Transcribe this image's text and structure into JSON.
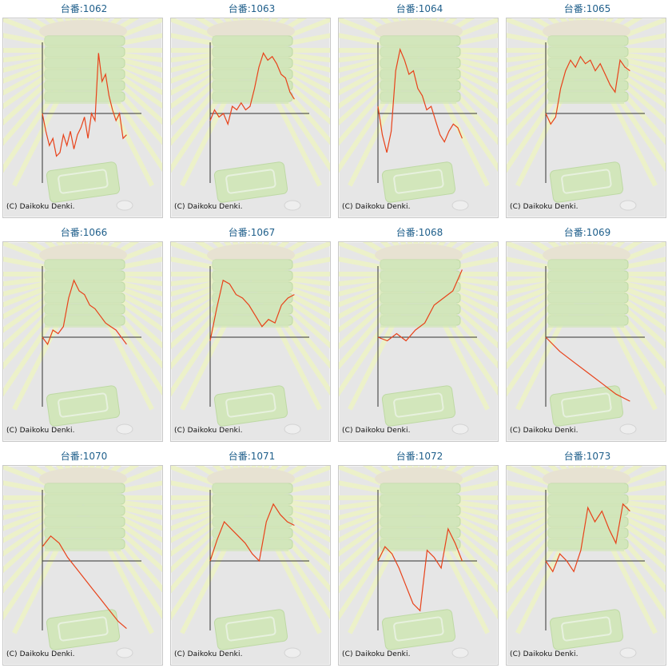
{
  "grid": {
    "rows": 3,
    "cols": 4
  },
  "copyright": "(C) Daikoku Denki.",
  "colors": {
    "line": "#e8421a",
    "axis": "#333333",
    "title": "#1f5f8b",
    "background": "#e6e6e6",
    "art": "#cfe6b4"
  },
  "chart_data": [
    {
      "type": "line",
      "title": "台番:1062",
      "ylim": [
        -1,
        1
      ],
      "values": [
        0.0,
        -0.25,
        -0.45,
        -0.35,
        -0.6,
        -0.55,
        -0.3,
        -0.45,
        -0.25,
        -0.5,
        -0.3,
        -0.2,
        -0.05,
        -0.35,
        0.0,
        -0.1,
        0.85,
        0.45,
        0.55,
        0.25,
        0.05,
        -0.1,
        0.0,
        -0.35,
        -0.3
      ]
    },
    {
      "type": "line",
      "title": "台番:1063",
      "ylim": [
        -1,
        1
      ],
      "values": [
        -0.1,
        0.05,
        -0.05,
        0.0,
        -0.15,
        0.1,
        0.05,
        0.15,
        0.05,
        0.1,
        0.35,
        0.65,
        0.85,
        0.75,
        0.8,
        0.7,
        0.55,
        0.5,
        0.3,
        0.2
      ]
    },
    {
      "type": "line",
      "title": "台番:1064",
      "ylim": [
        -1,
        1
      ],
      "values": [
        0.1,
        -0.3,
        -0.55,
        -0.25,
        0.6,
        0.9,
        0.75,
        0.55,
        0.6,
        0.35,
        0.25,
        0.05,
        0.1,
        -0.1,
        -0.3,
        -0.4,
        -0.25,
        -0.15,
        -0.2,
        -0.35
      ]
    },
    {
      "type": "line",
      "title": "台番:1065",
      "ylim": [
        -1,
        1
      ],
      "values": [
        0.0,
        -0.15,
        -0.05,
        0.35,
        0.6,
        0.75,
        0.65,
        0.8,
        0.7,
        0.75,
        0.6,
        0.7,
        0.55,
        0.4,
        0.3,
        0.75,
        0.65,
        0.6
      ]
    },
    {
      "type": "line",
      "title": "台番:1066",
      "ylim": [
        -1,
        1
      ],
      "values": [
        0.0,
        -0.1,
        0.1,
        0.05,
        0.15,
        0.55,
        0.8,
        0.65,
        0.6,
        0.45,
        0.4,
        0.3,
        0.2,
        0.15,
        0.1,
        0.0,
        -0.1
      ]
    },
    {
      "type": "line",
      "title": "台番:1067",
      "ylim": [
        -1,
        1
      ],
      "values": [
        -0.05,
        0.4,
        0.8,
        0.75,
        0.6,
        0.55,
        0.45,
        0.3,
        0.15,
        0.25,
        0.2,
        0.45,
        0.55,
        0.6
      ]
    },
    {
      "type": "line",
      "title": "台番:1068",
      "ylim": [
        -1,
        1
      ],
      "values": [
        0.0,
        -0.05,
        0.05,
        -0.05,
        0.1,
        0.2,
        0.45,
        0.55,
        0.65,
        0.95
      ]
    },
    {
      "type": "line",
      "title": "台番:1069",
      "ylim": [
        -1,
        1
      ],
      "values": [
        0.0,
        -0.2,
        -0.35,
        -0.5,
        -0.65,
        -0.8,
        -0.9
      ]
    },
    {
      "type": "line",
      "title": "台番:1070",
      "ylim": [
        -1,
        1
      ],
      "values": [
        0.2,
        0.35,
        0.25,
        0.05,
        -0.1,
        -0.25,
        -0.4,
        -0.55,
        -0.7,
        -0.85,
        -0.95
      ]
    },
    {
      "type": "line",
      "title": "台番:1071",
      "ylim": [
        -1,
        1
      ],
      "values": [
        0.0,
        0.3,
        0.55,
        0.45,
        0.35,
        0.25,
        0.1,
        0.0,
        0.55,
        0.8,
        0.65,
        0.55,
        0.5
      ]
    },
    {
      "type": "line",
      "title": "台番:1072",
      "ylim": [
        -1,
        1
      ],
      "values": [
        0.0,
        0.2,
        0.1,
        -0.1,
        -0.35,
        -0.6,
        -0.7,
        0.15,
        0.05,
        -0.1,
        0.45,
        0.25,
        0.0
      ]
    },
    {
      "type": "line",
      "title": "台番:1073",
      "ylim": [
        -1,
        1
      ],
      "values": [
        0.0,
        -0.15,
        0.1,
        0.0,
        -0.15,
        0.15,
        0.75,
        0.55,
        0.7,
        0.45,
        0.25,
        0.8,
        0.7
      ]
    }
  ]
}
